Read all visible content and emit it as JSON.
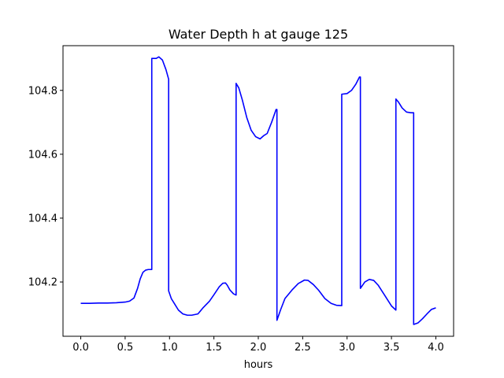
{
  "chart_data": {
    "type": "line",
    "title": "Water Depth h at gauge 125",
    "xlabel": "hours",
    "ylabel": "",
    "xlim": [
      -0.2,
      4.2
    ],
    "ylim": [
      104.03,
      104.94
    ],
    "xticks": [
      0.0,
      0.5,
      1.0,
      1.5,
      2.0,
      2.5,
      3.0,
      3.5,
      4.0
    ],
    "xtick_labels": [
      "0.0",
      "0.5",
      "1.0",
      "1.5",
      "2.0",
      "2.5",
      "3.0",
      "3.5",
      "4.0"
    ],
    "yticks": [
      104.2,
      104.4,
      104.6,
      104.8
    ],
    "ytick_labels": [
      "104.2",
      "104.4",
      "104.6",
      "104.8"
    ],
    "grid": false,
    "color": "#0000ff",
    "series": [
      {
        "x": [
          0.0,
          0.1,
          0.2,
          0.3,
          0.4,
          0.5,
          0.55,
          0.6,
          0.64,
          0.67,
          0.7,
          0.73,
          0.76,
          0.79,
          0.8,
          0.8,
          0.85,
          0.88,
          0.92,
          0.96,
          0.99,
          0.99,
          1.02,
          1.06,
          1.1,
          1.15,
          1.2,
          1.25,
          1.32,
          1.38,
          1.45,
          1.5,
          1.56,
          1.6,
          1.63,
          1.65,
          1.68,
          1.72,
          1.75,
          1.75,
          1.78,
          1.82,
          1.87,
          1.92,
          1.97,
          2.02,
          2.06,
          2.1,
          2.15,
          2.2,
          2.21,
          2.21,
          2.25,
          2.3,
          2.38,
          2.45,
          2.52,
          2.56,
          2.62,
          2.68,
          2.75,
          2.82,
          2.88,
          2.94,
          2.94,
          3.0,
          3.05,
          3.1,
          3.14,
          3.15,
          3.15,
          3.2,
          3.25,
          3.3,
          3.35,
          3.42,
          3.5,
          3.55,
          3.55,
          3.58,
          3.62,
          3.67,
          3.72,
          3.75,
          3.75,
          3.8,
          3.85,
          3.9,
          3.95,
          4.0
        ],
        "y": [
          104.133,
          104.133,
          104.134,
          104.134,
          104.135,
          104.137,
          104.14,
          104.15,
          104.18,
          104.21,
          104.23,
          104.237,
          104.239,
          104.239,
          104.239,
          104.9,
          104.9,
          104.905,
          104.895,
          104.865,
          104.835,
          104.172,
          104.148,
          104.13,
          104.112,
          104.1,
          104.096,
          104.096,
          104.1,
          104.12,
          104.14,
          104.16,
          104.185,
          104.196,
          104.197,
          104.19,
          104.175,
          104.163,
          104.159,
          104.822,
          104.808,
          104.77,
          104.715,
          104.675,
          104.655,
          104.648,
          104.658,
          104.665,
          104.7,
          104.74,
          104.74,
          104.08,
          104.112,
          104.148,
          104.175,
          104.195,
          104.206,
          104.205,
          104.192,
          104.174,
          104.148,
          104.133,
          104.127,
          104.126,
          104.788,
          104.79,
          104.8,
          104.82,
          104.842,
          104.842,
          104.18,
          104.2,
          104.208,
          104.205,
          104.19,
          104.16,
          104.125,
          104.112,
          104.773,
          104.763,
          104.745,
          104.732,
          104.73,
          104.73,
          104.067,
          104.072,
          104.085,
          104.1,
          104.114,
          104.119
        ]
      }
    ]
  }
}
